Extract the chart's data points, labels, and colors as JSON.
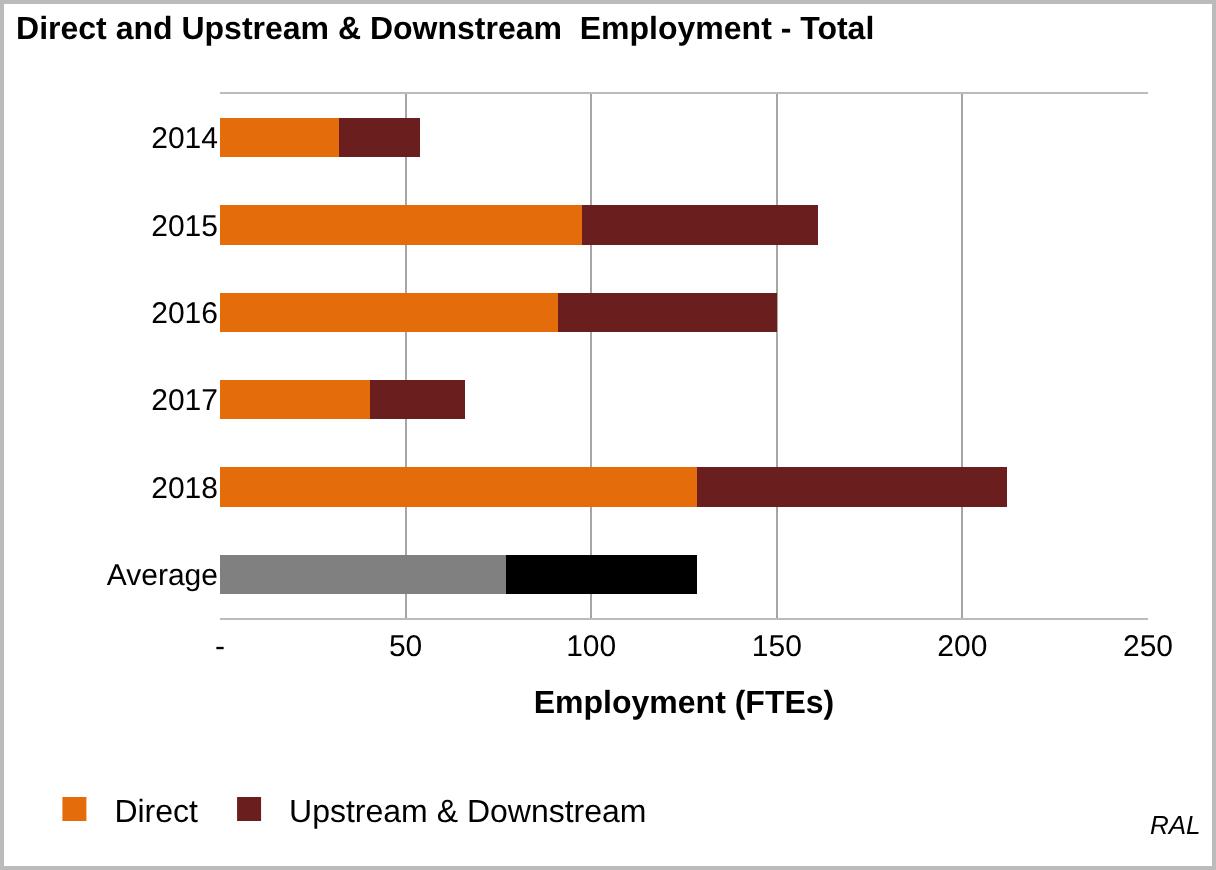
{
  "chart_data": {
    "type": "bar",
    "orientation": "horizontal",
    "stacked": true,
    "title": "Direct and Upstream & Downstream  Employment - Total",
    "xlabel": "Employment (FTEs)",
    "categories": [
      "2014",
      "2015",
      "2016",
      "2017",
      "2018",
      "Average"
    ],
    "series": [
      {
        "name": "Direct",
        "colors": [
          "#e46c0a",
          "#e46c0a",
          "#e46c0a",
          "#e46c0a",
          "#e46c0a",
          "#808080"
        ],
        "values": [
          32,
          97.5,
          91,
          40.5,
          128.5,
          77
        ]
      },
      {
        "name": "Upstream & Downstream",
        "colors": [
          "#6b1e1e",
          "#6b1e1e",
          "#6b1e1e",
          "#6b1e1e",
          "#6b1e1e",
          "#000000"
        ],
        "values": [
          22,
          63.5,
          59,
          25.5,
          83.5,
          51.5
        ]
      }
    ],
    "xlim": [
      0,
      250
    ],
    "xticks": [
      {
        "value": 0,
        "label": "-"
      },
      50,
      100,
      150,
      200,
      250
    ],
    "grid": "x",
    "legend": "bottom left",
    "annotations": [
      "RAL"
    ]
  }
}
